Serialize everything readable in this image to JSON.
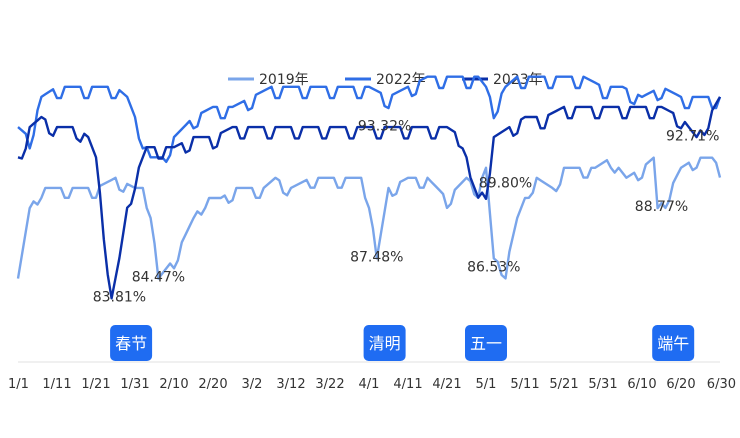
{
  "chart_data": {
    "type": "line",
    "title": "",
    "xlabel": "",
    "ylabel": "",
    "ylim": [
      78,
      105
    ],
    "grid": false,
    "legend_position": "top-center",
    "x_ticks": [
      "1/1",
      "1/11",
      "1/21",
      "1/31",
      "2/10",
      "2/20",
      "3/2",
      "3/12",
      "3/22",
      "4/1",
      "4/11",
      "4/21",
      "5/1",
      "5/11",
      "5/21",
      "5/31",
      "6/10",
      "6/20",
      "6/30"
    ],
    "days": 181,
    "series": [
      {
        "name": "2019年",
        "color": "#7aa5ea",
        "key_x": [
          0,
          3,
          6,
          9,
          12,
          16,
          20,
          25,
          30,
          32,
          34,
          36,
          40,
          45,
          48,
          52,
          56,
          60,
          63,
          66,
          70,
          75,
          80,
          85,
          88,
          90,
          92,
          95,
          100,
          105,
          110,
          115,
          118,
          120,
          122,
          125,
          128,
          131,
          133,
          137,
          140,
          144,
          148,
          152,
          156,
          160,
          163,
          164,
          166,
          170,
          174,
          178,
          180
        ],
        "key_y": [
          86,
          93,
          95,
          95,
          95,
          95,
          95,
          96,
          95,
          95,
          93,
          86,
          88,
          92,
          94,
          94,
          95,
          95,
          95,
          96,
          95,
          96,
          96,
          96,
          96,
          94,
          88,
          95,
          96,
          96,
          94,
          96,
          95,
          97,
          88,
          87,
          92,
          95,
          96,
          95,
          97,
          97,
          97,
          98,
          96,
          97,
          98,
          93,
          94,
          97,
          98,
          98,
          97
        ],
        "osc_amp": 0.7
      },
      {
        "name": "2022年",
        "color": "#2f6ee6",
        "key_x": [
          0,
          3,
          6,
          10,
          15,
          20,
          25,
          28,
          30,
          34,
          37,
          40,
          45,
          50,
          55,
          60,
          65,
          70,
          75,
          80,
          85,
          90,
          95,
          100,
          105,
          110,
          115,
          118,
          120,
          122,
          125,
          128,
          130,
          135,
          140,
          145,
          150,
          155,
          160,
          165,
          170,
          175,
          180
        ],
        "key_y": [
          101,
          100,
          104,
          105,
          105,
          105,
          105,
          104,
          102,
          98,
          98,
          100,
          102,
          103,
          103,
          104,
          105,
          105,
          105,
          105,
          105,
          105,
          104,
          105,
          106,
          106,
          106,
          106,
          105,
          103,
          105,
          106,
          106,
          106,
          106,
          106,
          105,
          105,
          104,
          105,
          104,
          104,
          104
        ],
        "osc_amp": 0.8
      },
      {
        "name": "2023年",
        "color": "#0a2fa8",
        "key_x": [
          0,
          3,
          6,
          10,
          15,
          18,
          20,
          22,
          24,
          26,
          28,
          30,
          33,
          36,
          40,
          45,
          50,
          55,
          60,
          65,
          70,
          75,
          80,
          85,
          90,
          95,
          100,
          105,
          110,
          114,
          116,
          118,
          120,
          122,
          126,
          130,
          135,
          140,
          145,
          150,
          155,
          160,
          165,
          170,
          174,
          177,
          180
        ],
        "key_y": [
          98,
          101,
          102,
          101,
          101,
          100,
          98,
          91,
          84,
          88,
          93,
          96,
          99,
          99,
          99,
          100,
          100,
          101,
          101,
          101,
          101,
          101,
          101,
          101,
          101,
          101,
          101,
          101,
          101,
          100,
          96,
          94,
          95,
          100,
          101,
          102,
          102,
          103,
          103,
          103,
          103,
          103,
          103,
          102,
          100,
          102,
          104
        ],
        "osc_amp": 0.8
      }
    ],
    "data_labels": [
      {
        "text": "83.81%",
        "x": 26,
        "y": 84.0
      },
      {
        "text": "84.47%",
        "x": 36,
        "y": 86.0
      },
      {
        "text": "93.32%",
        "x": 94,
        "y": 101.0
      },
      {
        "text": "87.48%",
        "x": 92,
        "y": 88.0
      },
      {
        "text": "89.80%",
        "x": 125,
        "y": 95.3
      },
      {
        "text": "86.53%",
        "x": 122,
        "y": 87.0
      },
      {
        "text": "88.77%",
        "x": 165,
        "y": 93.0
      },
      {
        "text": "92.71%",
        "x": 173,
        "y": 100.0
      }
    ],
    "holidays": [
      {
        "label": "春节",
        "x": 29
      },
      {
        "label": "清明",
        "x": 94
      },
      {
        "label": "五一",
        "x": 120
      },
      {
        "label": "端午",
        "x": 168
      }
    ],
    "holiday_color": "#1f6cf2"
  }
}
